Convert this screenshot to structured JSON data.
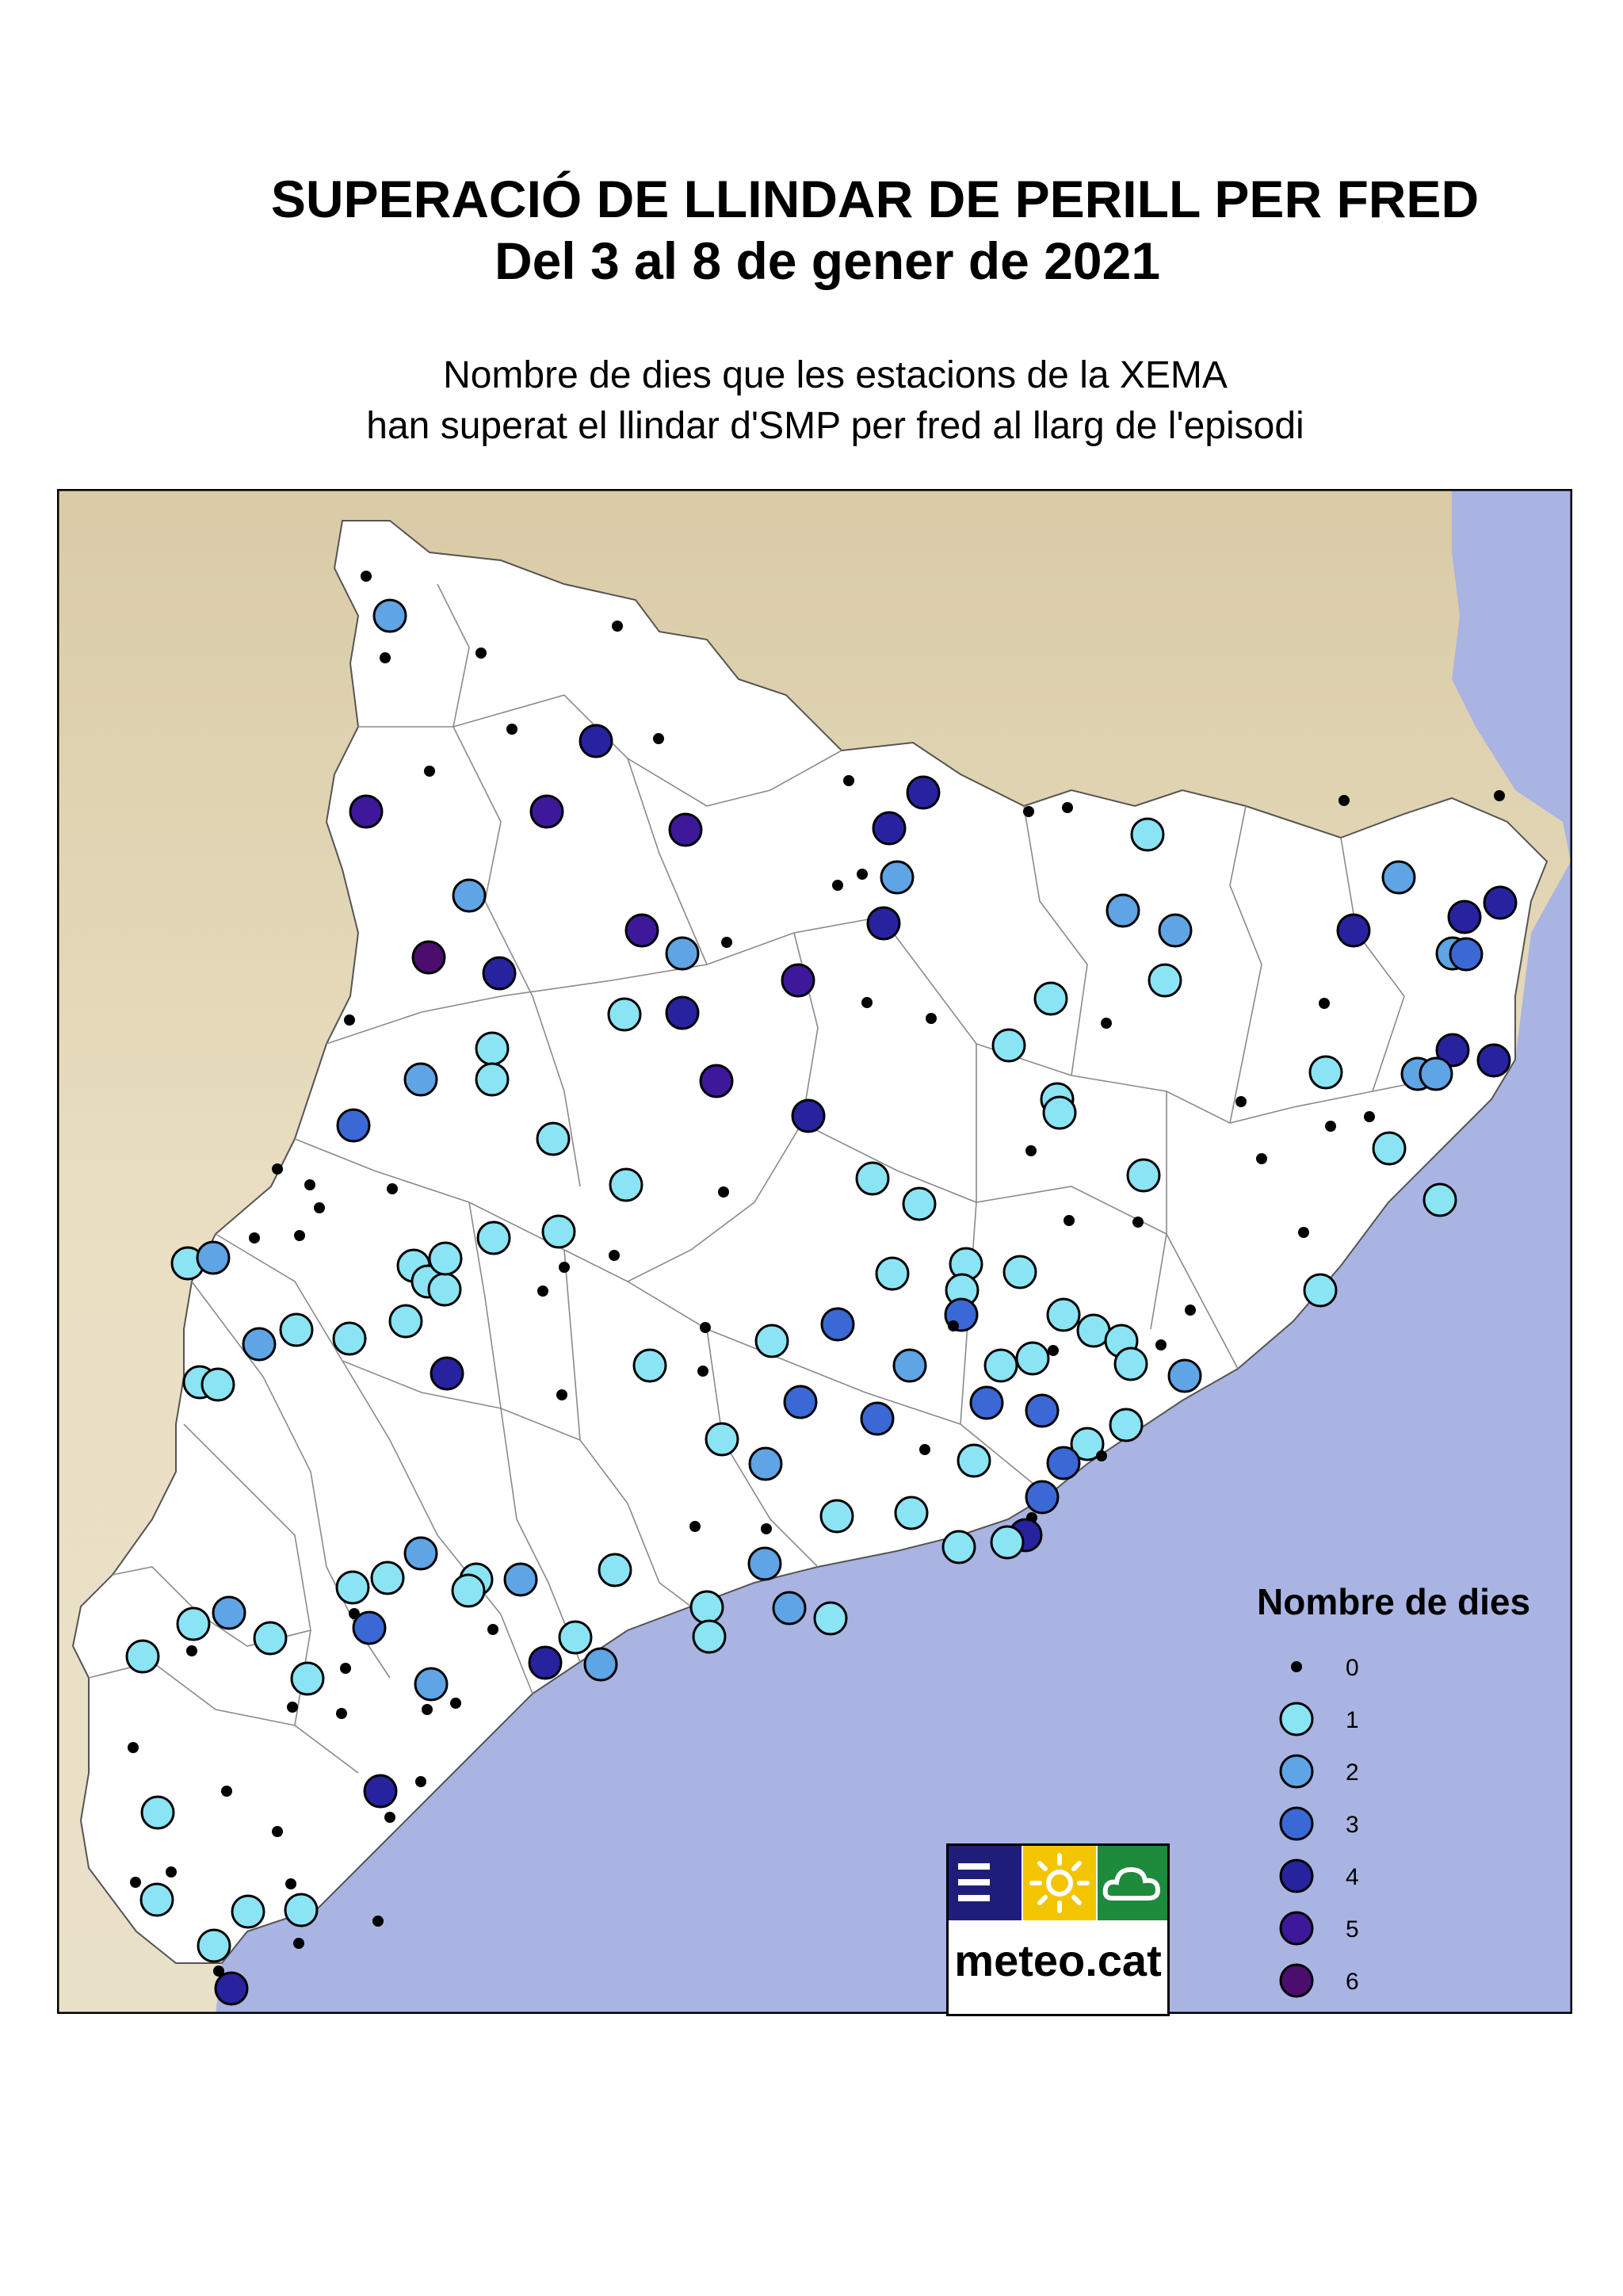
{
  "title_line1": "SUPERACIÓ DE LLINDAR DE PERILL PER FRED",
  "title_line2": "Del 3 al 8 de gener de 2021",
  "subtitle_line1": "Nombre de dies que les estacions de la XEMA",
  "subtitle_line2": "han superat el llindar d'SMP per fred al llarg de l'episodi",
  "legend": {
    "title": "Nombre de dies",
    "items": [
      {
        "label": "0",
        "color": "#000000"
      },
      {
        "label": "1",
        "color": "#8ae4f4"
      },
      {
        "label": "2",
        "color": "#5fa4e4"
      },
      {
        "label": "3",
        "color": "#3a68d4"
      },
      {
        "label": "4",
        "color": "#27239e"
      },
      {
        "label": "5",
        "color": "#3d1899"
      },
      {
        "label": "6",
        "color": "#4b0d6e"
      }
    ]
  },
  "logo": {
    "text": "meteo.cat"
  },
  "colors": {
    "sea": "#aab4e2",
    "land": "#ffffff",
    "relief": "#e8dcbc",
    "border": "#777777"
  }
}
